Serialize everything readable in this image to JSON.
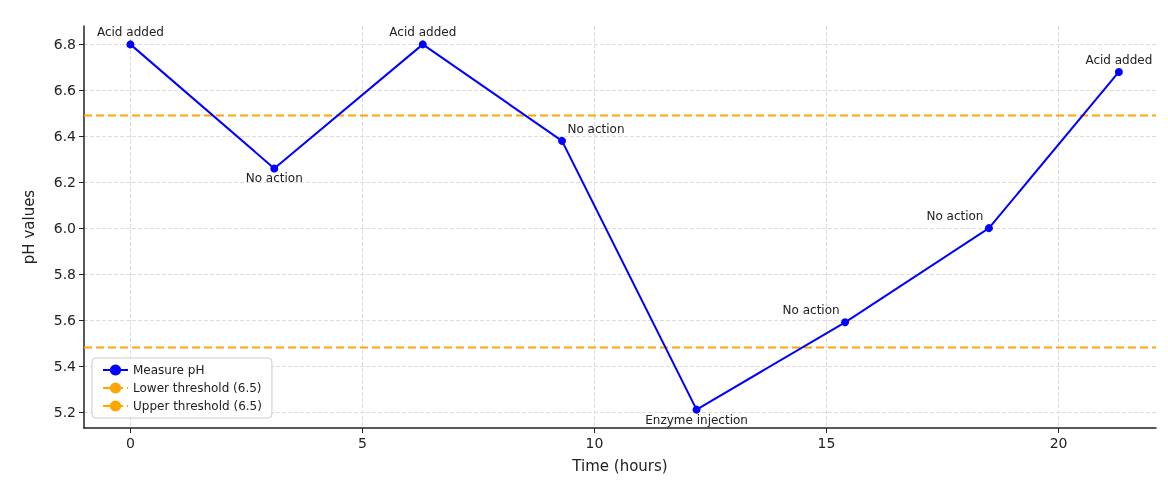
{
  "chart_data": {
    "type": "line",
    "xlabel": "Time (hours)",
    "ylabel": "pH values",
    "x": [
      0,
      3.1,
      6.3,
      9.3,
      12.2,
      15.4,
      18.5,
      21.3
    ],
    "series": [
      {
        "name": "Measure pH",
        "color": "#0000ff",
        "values": [
          6.8,
          6.26,
          6.8,
          6.38,
          5.21,
          5.59,
          6.0,
          6.68
        ]
      }
    ],
    "ref_lines": [
      {
        "axis": "y",
        "value": 5.48,
        "label": "Lower threshold (6.5)",
        "color": "#ffa500",
        "line_style": "dashed"
      },
      {
        "axis": "y",
        "value": 6.49,
        "label": "Upper threshold (6.5)",
        "color": "#ffa500",
        "line_style": "dashed"
      }
    ],
    "annotations": [
      {
        "text": "Acid added",
        "x": 0,
        "y": 6.8
      },
      {
        "text": "No action",
        "x": 3.1,
        "y": 6.26
      },
      {
        "text": "Acid added",
        "x": 6.3,
        "y": 6.8
      },
      {
        "text": "No action",
        "x": 9.3,
        "y": 6.38
      },
      {
        "text": "Enzyme injection",
        "x": 12.2,
        "y": 5.21
      },
      {
        "text": "No action",
        "x": 15.4,
        "y": 5.59
      },
      {
        "text": "No action",
        "x": 18.5,
        "y": 6.0
      },
      {
        "text": "Acid added",
        "x": 21.3,
        "y": 6.68
      }
    ],
    "xlim": [
      -1,
      22.1
    ],
    "ylim": [
      5.13,
      6.88
    ],
    "xticks": [
      0,
      5,
      10,
      15,
      20
    ],
    "yticks": [
      5.2,
      5.4,
      5.6,
      5.8,
      {
        "value": 6,
        "label": "6.0"
      },
      6.2,
      6.4,
      6.6,
      6.8
    ],
    "grid": true,
    "legend": "bottom left",
    "marker": "circle",
    "line_style": "solid"
  }
}
